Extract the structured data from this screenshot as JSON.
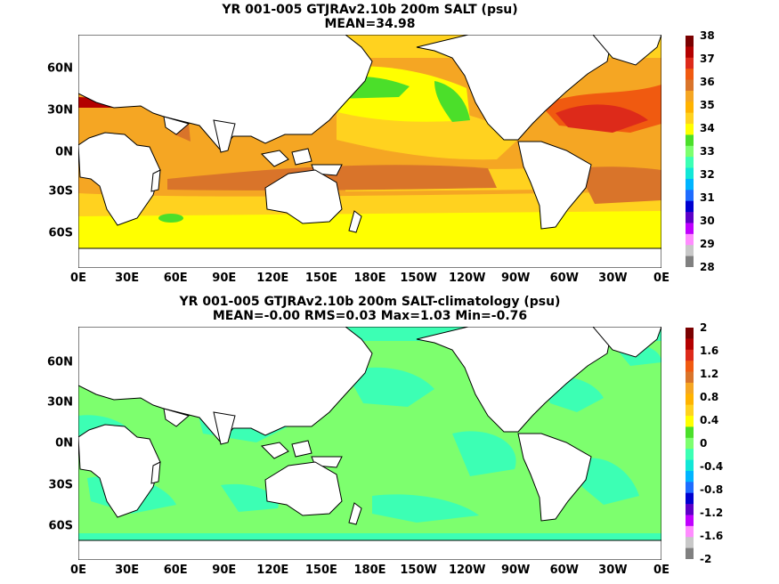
{
  "panel_top": {
    "title_line1": "YR 001-005 GTJRAv2.10b 200m SALT (psu)",
    "title_line2": "MEAN=34.98",
    "colorbar_ticks": [
      "38",
      "37",
      "36",
      "35",
      "34",
      "33",
      "32",
      "31",
      "30",
      "29",
      "28"
    ],
    "colorbar_colors": [
      "#7a0000",
      "#b30000",
      "#dd2a1a",
      "#f05a10",
      "#d9742a",
      "#f5a623",
      "#ffb300",
      "#ffd21f",
      "#ffff00",
      "#4bdf2a",
      "#7dff6e",
      "#3cffb4",
      "#12e7d7",
      "#00b4ff",
      "#1f6cff",
      "#0000d0",
      "#5d00c8",
      "#c000ff",
      "#ff8cff",
      "#c8c8c8",
      "#808080"
    ]
  },
  "panel_bottom": {
    "title_line1": "YR 001-005 GTJRAv2.10b 200m SALT-climatology (psu)",
    "title_line2": "MEAN=-0.00   RMS=0.03   Max=1.03   Min=-0.76",
    "colorbar_ticks": [
      "2",
      "1.6",
      "1.2",
      "0.8",
      "0.4",
      "0",
      "-0.4",
      "-0.8",
      "-1.2",
      "-1.6",
      "-2"
    ],
    "colorbar_colors": [
      "#7a0000",
      "#b30000",
      "#dd2a1a",
      "#f05a10",
      "#d9742a",
      "#f5a623",
      "#ffb300",
      "#ffd21f",
      "#ffff00",
      "#4bdf2a",
      "#7dff6e",
      "#3cffb4",
      "#12e7d7",
      "#00b4ff",
      "#1f6cff",
      "#0000d0",
      "#5d00c8",
      "#c000ff",
      "#ff8cff",
      "#c8c8c8",
      "#808080"
    ]
  },
  "x_tick_labels": [
    "0E",
    "30E",
    "60E",
    "90E",
    "120E",
    "150E",
    "180E",
    "150W",
    "120W",
    "90W",
    "60W",
    "30W",
    "0E"
  ],
  "y_tick_labels": [
    "60N",
    "30N",
    "0N",
    "30S",
    "60S"
  ]
}
